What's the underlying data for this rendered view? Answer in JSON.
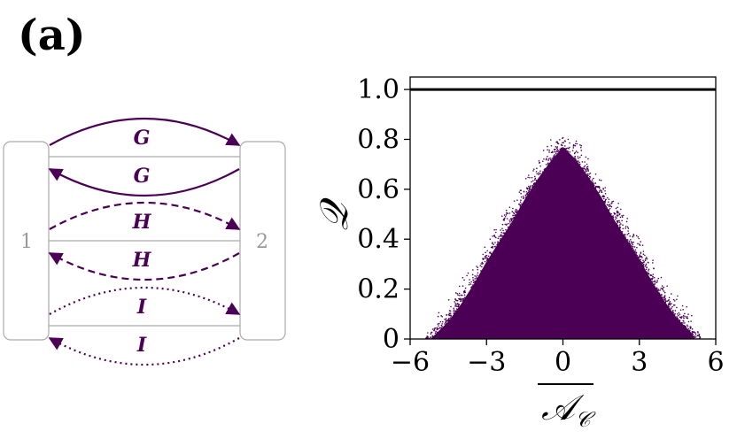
{
  "panel_label": "(a)",
  "colors": {
    "accent": "#4b0055",
    "box_stroke": "#aaaaaa",
    "box_text": "#999999",
    "axis": "#000000"
  },
  "diagram": {
    "box_left_label": "1",
    "box_right_label": "2",
    "arrows": [
      {
        "label": "G",
        "direction": "1-to-2",
        "style": "solid"
      },
      {
        "label": "G",
        "direction": "2-to-1",
        "style": "solid"
      },
      {
        "label": "H",
        "direction": "1-to-2",
        "style": "dashed"
      },
      {
        "label": "H",
        "direction": "2-to-1",
        "style": "dashed"
      },
      {
        "label": "I",
        "direction": "1-to-2",
        "style": "dotted"
      },
      {
        "label": "I",
        "direction": "2-to-1",
        "style": "dotted"
      }
    ]
  },
  "chart_data": {
    "type": "scatter",
    "title": "",
    "xlabel": "𝒜𝒞 (overlined)",
    "xlabel_parts": {
      "main": "𝒜",
      "sub": "𝒞"
    },
    "ylabel": "𝒬",
    "xlim": [
      -6,
      6
    ],
    "ylim": [
      0,
      1.05
    ],
    "xticks": [
      -6,
      -3,
      0,
      3,
      6
    ],
    "xtick_labels": [
      "−6",
      "−3",
      "0",
      "3",
      "6"
    ],
    "yticks": [
      0,
      0.2,
      0.4,
      0.6,
      0.8,
      1.0
    ],
    "ytick_labels": [
      "0",
      "0.2",
      "0.4",
      "0.6",
      "0.8",
      "1.0"
    ],
    "grid": false,
    "series": [
      {
        "kind": "point-cloud",
        "color": "#4b0055",
        "envelope_upper": [
          [
            -5.2,
            0.0
          ],
          [
            -5.0,
            0.02
          ],
          [
            -4.5,
            0.07
          ],
          [
            -4.0,
            0.14
          ],
          [
            -3.5,
            0.22
          ],
          [
            -3.0,
            0.31
          ],
          [
            -2.5,
            0.39
          ],
          [
            -2.0,
            0.47
          ],
          [
            -1.5,
            0.56
          ],
          [
            -1.0,
            0.64
          ],
          [
            -0.5,
            0.71
          ],
          [
            0.0,
            0.77
          ],
          [
            0.5,
            0.72
          ],
          [
            1.0,
            0.65
          ],
          [
            1.5,
            0.57
          ],
          [
            2.0,
            0.48
          ],
          [
            2.5,
            0.4
          ],
          [
            3.0,
            0.32
          ],
          [
            3.5,
            0.23
          ],
          [
            4.0,
            0.15
          ],
          [
            4.5,
            0.08
          ],
          [
            5.0,
            0.03
          ],
          [
            5.2,
            0.0
          ]
        ],
        "max_value": 0.81
      },
      {
        "kind": "hline",
        "y": 1.0,
        "color": "#000000"
      }
    ]
  }
}
